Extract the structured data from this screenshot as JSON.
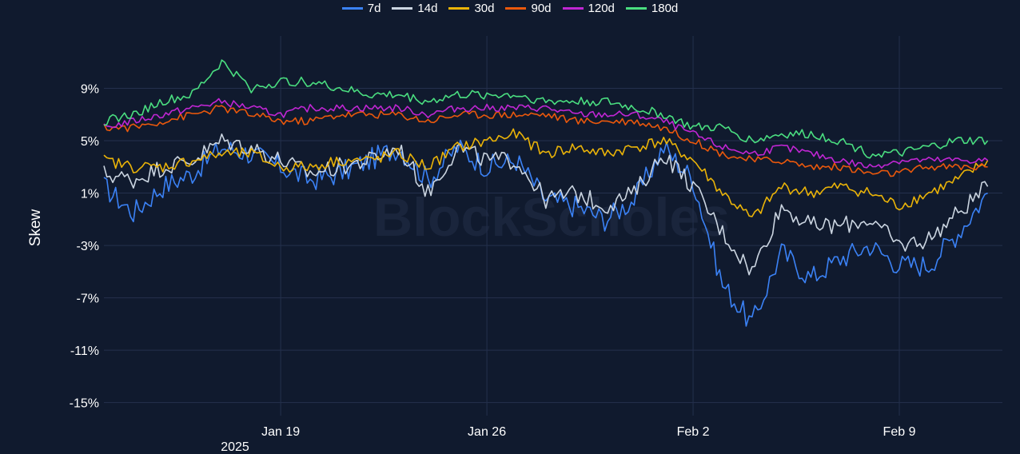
{
  "chart_data": {
    "type": "line",
    "xlabel": "",
    "ylabel": "Skew",
    "x_range": [
      "2025-01-13T00:00",
      "2025-02-12T12:00"
    ],
    "ylim": [
      -16,
      13
    ],
    "y_ticks": [
      9,
      5,
      1,
      -3,
      -7,
      -11,
      -15
    ],
    "y_tick_labels": [
      "9%",
      "5%",
      "1%",
      "-3%",
      "-7%",
      "-11%",
      "-15%"
    ],
    "x_ticks": [
      "2025-01-19",
      "2025-01-26",
      "2025-02-02",
      "2025-02-09"
    ],
    "x_tick_labels": [
      "Jan 19",
      "Jan 26",
      "Feb 2",
      "Feb 9"
    ],
    "x_subtitle": "2025",
    "grid": true,
    "legend_position": "top-center",
    "watermark": "BlockScholes",
    "series": [
      {
        "name": "7d",
        "color": "#3b82f6",
        "x": [
          "2025-01-13",
          "2025-01-14",
          "2025-01-15",
          "2025-01-16",
          "2025-01-17",
          "2025-01-18",
          "2025-01-19",
          "2025-01-20",
          "2025-01-21",
          "2025-01-22",
          "2025-01-23",
          "2025-01-24",
          "2025-01-25",
          "2025-01-26",
          "2025-01-27",
          "2025-01-28",
          "2025-01-29",
          "2025-01-30",
          "2025-01-31",
          "2025-02-01",
          "2025-02-02",
          "2025-02-03",
          "2025-02-04",
          "2025-02-05",
          "2025-02-06",
          "2025-02-07",
          "2025-02-08",
          "2025-02-09",
          "2025-02-10",
          "2025-02-11",
          "2025-02-12"
        ],
        "y": [
          1.5,
          -0.5,
          1.5,
          2.5,
          4.5,
          4.0,
          3.0,
          2.0,
          2.5,
          3.5,
          4.5,
          2.0,
          4.5,
          3.0,
          3.5,
          0.5,
          0.0,
          -1.0,
          0.5,
          4.5,
          2.0,
          -6.0,
          -9.0,
          -3.5,
          -5.5,
          -4.0,
          -3.0,
          -4.5,
          -4.5,
          -2.0,
          1.0
        ]
      },
      {
        "name": "14d",
        "color": "#cbd5e1",
        "x": [
          "2025-01-13",
          "2025-01-14",
          "2025-01-15",
          "2025-01-16",
          "2025-01-17",
          "2025-01-18",
          "2025-01-19",
          "2025-01-20",
          "2025-01-21",
          "2025-01-22",
          "2025-01-23",
          "2025-01-24",
          "2025-01-25",
          "2025-01-26",
          "2025-01-27",
          "2025-01-28",
          "2025-01-29",
          "2025-01-30",
          "2025-01-31",
          "2025-02-01",
          "2025-02-02",
          "2025-02-03",
          "2025-02-04",
          "2025-02-05",
          "2025-02-06",
          "2025-02-07",
          "2025-02-08",
          "2025-02-09",
          "2025-02-10",
          "2025-02-11",
          "2025-02-12"
        ],
        "y": [
          2.5,
          2.0,
          3.0,
          3.5,
          5.0,
          4.5,
          3.5,
          2.5,
          3.0,
          3.5,
          4.5,
          1.0,
          4.5,
          3.5,
          3.5,
          0.5,
          1.0,
          0.0,
          1.0,
          4.0,
          1.5,
          -2.0,
          -5.0,
          0.0,
          -1.5,
          -1.5,
          -1.0,
          -3.0,
          -2.5,
          -0.5,
          1.5
        ]
      },
      {
        "name": "30d",
        "color": "#eab308",
        "x": [
          "2025-01-13",
          "2025-01-14",
          "2025-01-15",
          "2025-01-16",
          "2025-01-17",
          "2025-01-18",
          "2025-01-19",
          "2025-01-20",
          "2025-01-21",
          "2025-01-22",
          "2025-01-23",
          "2025-01-24",
          "2025-01-25",
          "2025-01-26",
          "2025-01-27",
          "2025-01-28",
          "2025-01-29",
          "2025-01-30",
          "2025-01-31",
          "2025-02-01",
          "2025-02-02",
          "2025-02-03",
          "2025-02-04",
          "2025-02-05",
          "2025-02-06",
          "2025-02-07",
          "2025-02-08",
          "2025-02-09",
          "2025-02-10",
          "2025-02-11",
          "2025-02-12"
        ],
        "y": [
          3.5,
          3.0,
          3.0,
          3.5,
          4.0,
          4.0,
          3.0,
          3.0,
          3.5,
          3.5,
          4.0,
          3.0,
          4.5,
          5.0,
          5.5,
          4.0,
          4.5,
          4.0,
          4.5,
          5.0,
          3.5,
          1.0,
          -1.0,
          1.5,
          1.0,
          1.5,
          1.0,
          0.0,
          1.0,
          2.0,
          3.5
        ]
      },
      {
        "name": "90d",
        "color": "#ea580c",
        "x": [
          "2025-01-13",
          "2025-01-14",
          "2025-01-15",
          "2025-01-16",
          "2025-01-17",
          "2025-01-18",
          "2025-01-19",
          "2025-01-20",
          "2025-01-21",
          "2025-01-22",
          "2025-01-23",
          "2025-01-24",
          "2025-01-25",
          "2025-01-26",
          "2025-01-27",
          "2025-01-28",
          "2025-01-29",
          "2025-01-30",
          "2025-01-31",
          "2025-02-01",
          "2025-02-02",
          "2025-02-03",
          "2025-02-04",
          "2025-02-05",
          "2025-02-06",
          "2025-02-07",
          "2025-02-08",
          "2025-02-09",
          "2025-02-10",
          "2025-02-11",
          "2025-02-12"
        ],
        "y": [
          6.0,
          6.0,
          6.5,
          7.0,
          7.5,
          7.0,
          6.5,
          6.5,
          7.0,
          7.0,
          7.0,
          6.5,
          7.0,
          7.0,
          7.0,
          7.0,
          6.5,
          6.5,
          6.5,
          6.0,
          5.0,
          4.0,
          3.5,
          3.5,
          3.0,
          3.0,
          2.5,
          2.5,
          3.0,
          3.0,
          3.0
        ]
      },
      {
        "name": "120d",
        "color": "#c026d3",
        "x": [
          "2025-01-13",
          "2025-01-14",
          "2025-01-15",
          "2025-01-16",
          "2025-01-17",
          "2025-01-18",
          "2025-01-19",
          "2025-01-20",
          "2025-01-21",
          "2025-01-22",
          "2025-01-23",
          "2025-01-24",
          "2025-01-25",
          "2025-01-26",
          "2025-01-27",
          "2025-01-28",
          "2025-01-29",
          "2025-01-30",
          "2025-01-31",
          "2025-02-01",
          "2025-02-02",
          "2025-02-03",
          "2025-02-04",
          "2025-02-05",
          "2025-02-06",
          "2025-02-07",
          "2025-02-08",
          "2025-02-09",
          "2025-02-10",
          "2025-02-11",
          "2025-02-12"
        ],
        "y": [
          6.0,
          6.5,
          7.0,
          7.5,
          8.0,
          7.5,
          7.0,
          7.5,
          7.5,
          7.5,
          7.5,
          7.0,
          7.5,
          7.5,
          7.5,
          7.5,
          7.0,
          7.0,
          7.0,
          6.5,
          5.5,
          4.5,
          4.0,
          4.5,
          4.0,
          3.5,
          3.0,
          3.5,
          3.5,
          3.5,
          3.5
        ]
      },
      {
        "name": "180d",
        "color": "#4ade80",
        "x": [
          "2025-01-13",
          "2025-01-14",
          "2025-01-15",
          "2025-01-16",
          "2025-01-17",
          "2025-01-18",
          "2025-01-19",
          "2025-01-20",
          "2025-01-21",
          "2025-01-22",
          "2025-01-23",
          "2025-01-24",
          "2025-01-25",
          "2025-01-26",
          "2025-01-27",
          "2025-01-28",
          "2025-01-29",
          "2025-01-30",
          "2025-01-31",
          "2025-02-01",
          "2025-02-02",
          "2025-02-03",
          "2025-02-04",
          "2025-02-05",
          "2025-02-06",
          "2025-02-07",
          "2025-02-08",
          "2025-02-09",
          "2025-02-10",
          "2025-02-11",
          "2025-02-12"
        ],
        "y": [
          6.5,
          7.0,
          8.0,
          8.5,
          11.0,
          9.0,
          9.5,
          9.5,
          9.0,
          8.5,
          8.5,
          8.0,
          8.5,
          8.5,
          8.5,
          8.0,
          8.0,
          8.0,
          7.5,
          7.0,
          6.0,
          6.0,
          5.0,
          5.5,
          5.5,
          5.0,
          4.0,
          4.0,
          4.5,
          5.0,
          5.0
        ]
      }
    ]
  }
}
